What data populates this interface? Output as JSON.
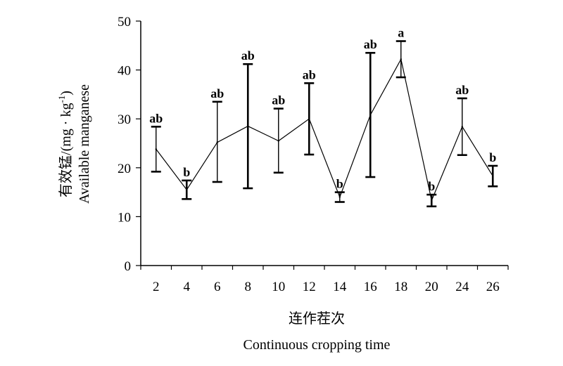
{
  "chart_data": {
    "type": "line",
    "title": "",
    "xlabel_cn": "连作茬次",
    "xlabel_en": "Continuous cropping time",
    "ylabel_cn": "有效锰/(mg · kg",
    "ylabel_sup": "-1",
    "ylabel_close": ")",
    "ylabel_en": "Available manganese",
    "ylim": [
      0,
      50
    ],
    "yticks": [
      "0",
      "10",
      "20",
      "30",
      "40",
      "50"
    ],
    "grid": false,
    "legend": "none",
    "categories": [
      "2",
      "4",
      "6",
      "8",
      "10",
      "12",
      "14",
      "16",
      "18",
      "20",
      "24",
      "26"
    ],
    "series": [
      {
        "values": [
          23.8,
          15.5,
          25.2,
          28.5,
          25.5,
          30.0,
          14.0,
          30.8,
          42.2,
          13.3,
          28.4,
          18.3
        ],
        "error_low": [
          19.2,
          13.6,
          17.1,
          15.8,
          19.0,
          22.7,
          13.0,
          18.1,
          38.5,
          12.1,
          22.6,
          16.2
        ],
        "error_high": [
          28.4,
          17.4,
          33.5,
          41.2,
          32.1,
          37.3,
          15.0,
          43.5,
          45.9,
          14.5,
          34.2,
          20.4
        ],
        "significance": [
          "ab",
          "b",
          "ab",
          "ab",
          "ab",
          "ab",
          "b",
          "ab",
          "a",
          "b",
          "ab",
          "b"
        ]
      }
    ]
  }
}
